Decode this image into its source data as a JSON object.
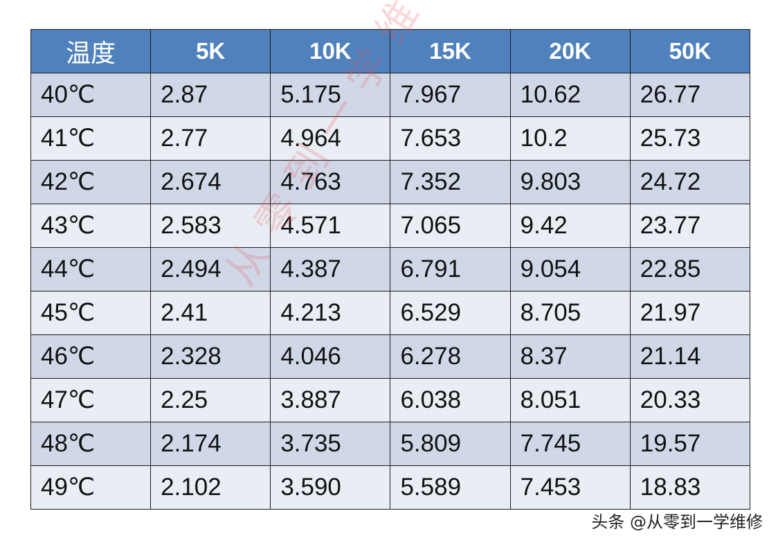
{
  "chart_data": {
    "type": "table",
    "columns": [
      "温度",
      "5K",
      "10K",
      "15K",
      "20K",
      "50K"
    ],
    "rows": [
      [
        "40℃",
        "2.87",
        "5.175",
        "7.967",
        "10.62",
        "26.77"
      ],
      [
        "41℃",
        "2.77",
        "4.964",
        "7.653",
        "10.2",
        "25.73"
      ],
      [
        "42℃",
        "2.674",
        "4.763",
        "7.352",
        "9.803",
        "24.72"
      ],
      [
        "43℃",
        "2.583",
        "4.571",
        "7.065",
        "9.42",
        "23.77"
      ],
      [
        "44℃",
        "2.494",
        "4.387",
        "6.791",
        "9.054",
        "22.85"
      ],
      [
        "45℃",
        "2.41",
        "4.213",
        "6.529",
        "8.705",
        "21.97"
      ],
      [
        "46℃",
        "2.328",
        "4.046",
        "6.278",
        "8.37",
        "21.14"
      ],
      [
        "47℃",
        "2.25",
        "3.887",
        "6.038",
        "8.051",
        "20.33"
      ],
      [
        "48℃",
        "2.174",
        "3.735",
        "5.809",
        "7.745",
        "19.57"
      ],
      [
        "49℃",
        "2.102",
        "3.590",
        "5.589",
        "7.453",
        "18.83"
      ]
    ]
  },
  "watermark": "从零到一学维修",
  "footer_tag": "头条 @从零到一学维修",
  "colors": {
    "header_bg": "#4f81bd",
    "row_odd_bg": "#d0d8e8",
    "row_even_bg": "#e9edf4",
    "watermark": "#e65050"
  }
}
